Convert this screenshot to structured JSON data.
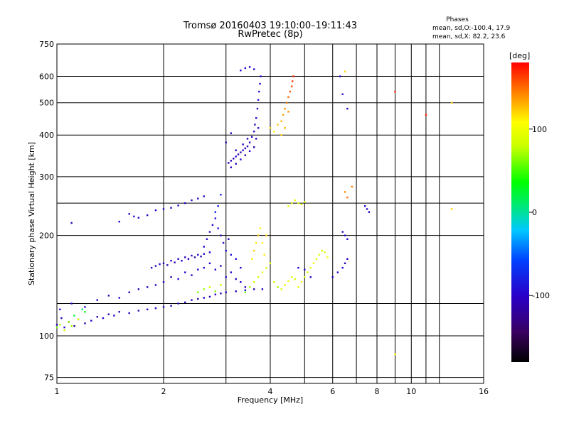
{
  "chart_data": {
    "type": "scatter",
    "title": "Tromsø 20160403 19:10:00–19:11:43",
    "subtitle": "RwPretec (8p)",
    "xlabel": "Frequency [MHz]",
    "ylabel": "Stationary phase Virtual Height [km]",
    "x_scale": "log",
    "y_scale": "log",
    "xlim": [
      1,
      16
    ],
    "ylim": [
      72,
      750
    ],
    "x_ticks": [
      1,
      2,
      4,
      6,
      8,
      10,
      16
    ],
    "x_tick_labels": [
      "1",
      "2",
      "4",
      "6",
      "8",
      "10",
      "16"
    ],
    "x_extra_gridlines": [
      3,
      5,
      7,
      9,
      11,
      12
    ],
    "y_ticks": [
      75,
      100,
      200,
      300,
      400,
      500,
      600,
      750
    ],
    "y_tick_labels": [
      "75",
      "100",
      "200",
      "300",
      "400",
      "500",
      "600",
      "750"
    ],
    "y_extra_gridlines": [
      125,
      250
    ],
    "grid": true,
    "stats": {
      "heading": "Phases",
      "line_o": "mean, sd,O:-100.4, 17.9",
      "line_x": "mean, sd,X:  82.2, 23.6"
    },
    "colorbar": {
      "label": "[deg]",
      "range": [
        -180,
        180
      ],
      "ticks": [
        100,
        0,
        -100
      ],
      "tick_labels": [
        "100",
        "0",
        "-100"
      ]
    },
    "series": [
      {
        "points": [
          [
            1.0,
            108,
            -100
          ],
          [
            1.03,
            113,
            -110
          ],
          [
            1.05,
            106,
            -95
          ],
          [
            1.08,
            110,
            -105
          ],
          [
            1.12,
            107,
            -120
          ],
          [
            1.15,
            112,
            -100
          ],
          [
            1.2,
            109,
            -110
          ],
          [
            1.25,
            111,
            -100
          ],
          [
            1.3,
            114,
            -115
          ],
          [
            1.35,
            113,
            -100
          ],
          [
            1.4,
            116,
            -110
          ],
          [
            1.45,
            115,
            -100
          ],
          [
            1.5,
            118,
            -110
          ],
          [
            1.6,
            117,
            -100
          ],
          [
            1.7,
            119,
            -110
          ],
          [
            1.8,
            120,
            -100
          ],
          [
            1.9,
            121,
            -110
          ],
          [
            2.0,
            122,
            -100
          ],
          [
            2.1,
            123,
            -110
          ],
          [
            2.2,
            125,
            -100
          ],
          [
            2.3,
            126,
            -110
          ],
          [
            2.4,
            128,
            -100
          ],
          [
            2.5,
            129,
            -110
          ],
          [
            2.6,
            130,
            -100
          ],
          [
            2.7,
            131,
            -110
          ],
          [
            2.8,
            133,
            -100
          ],
          [
            2.9,
            134,
            -110
          ],
          [
            3.0,
            135,
            -100
          ],
          [
            3.2,
            136,
            -110
          ],
          [
            3.4,
            137,
            -100
          ],
          [
            3.6,
            138,
            -110
          ],
          [
            3.8,
            138,
            -100
          ],
          [
            1.02,
            120,
            -90
          ],
          [
            1.1,
            125,
            -100
          ],
          [
            1.2,
            122,
            -95
          ],
          [
            1.3,
            128,
            -100
          ],
          [
            1.4,
            132,
            -110
          ],
          [
            1.5,
            130,
            -95
          ],
          [
            1.6,
            135,
            -100
          ],
          [
            1.7,
            138,
            -110
          ],
          [
            1.8,
            140,
            -100
          ],
          [
            1.9,
            142,
            -105
          ],
          [
            2.0,
            145,
            -100
          ],
          [
            2.1,
            150,
            -110
          ],
          [
            2.2,
            148,
            -95
          ],
          [
            2.3,
            155,
            -100
          ],
          [
            2.4,
            152,
            -110
          ],
          [
            2.5,
            158,
            -100
          ],
          [
            2.6,
            160,
            -95
          ],
          [
            2.7,
            165,
            -105
          ],
          [
            2.8,
            158,
            -100
          ],
          [
            2.9,
            162,
            -110
          ],
          [
            3.0,
            150,
            -95
          ],
          [
            3.1,
            155,
            -100
          ],
          [
            3.2,
            148,
            -105
          ],
          [
            3.3,
            145,
            -100
          ],
          [
            3.4,
            140,
            -110
          ],
          [
            1.85,
            160,
            -105
          ],
          [
            1.9,
            162,
            -110
          ],
          [
            1.95,
            164,
            -100
          ],
          [
            2.0,
            165,
            -110
          ],
          [
            2.05,
            163,
            -105
          ],
          [
            2.1,
            168,
            -100
          ],
          [
            2.15,
            166,
            -110
          ],
          [
            2.2,
            170,
            -100
          ],
          [
            2.25,
            168,
            -105
          ],
          [
            2.3,
            172,
            -110
          ],
          [
            2.35,
            170,
            -100
          ],
          [
            2.4,
            174,
            -105
          ],
          [
            2.45,
            172,
            -110
          ],
          [
            2.5,
            175,
            -100
          ],
          [
            2.55,
            173,
            -105
          ],
          [
            2.6,
            176,
            -110
          ],
          [
            2.7,
            178,
            -100
          ],
          [
            2.6,
            185,
            -100
          ],
          [
            2.65,
            195,
            -90
          ],
          [
            2.7,
            205,
            -95
          ],
          [
            2.75,
            215,
            -100
          ],
          [
            2.8,
            225,
            -90
          ],
          [
            2.85,
            210,
            -95
          ],
          [
            2.9,
            200,
            -100
          ],
          [
            2.95,
            190,
            -90
          ],
          [
            3.0,
            180,
            -95
          ],
          [
            3.05,
            195,
            -100
          ],
          [
            3.1,
            175,
            -90
          ],
          [
            3.2,
            170,
            -95
          ],
          [
            3.3,
            160,
            -100
          ],
          [
            2.8,
            235,
            -80
          ],
          [
            2.85,
            245,
            -85
          ],
          [
            2.9,
            265,
            -80
          ],
          [
            1.6,
            232,
            -100
          ],
          [
            1.65,
            228,
            -95
          ],
          [
            1.7,
            226,
            -100
          ],
          [
            1.8,
            230,
            -105
          ],
          [
            1.9,
            238,
            -100
          ],
          [
            2.0,
            240,
            -95
          ],
          [
            2.1,
            242,
            -100
          ],
          [
            2.2,
            246,
            -105
          ],
          [
            2.3,
            250,
            -100
          ],
          [
            2.4,
            255,
            -95
          ],
          [
            2.5,
            258,
            -100
          ],
          [
            2.6,
            262,
            -105
          ],
          [
            1.5,
            220,
            -100
          ],
          [
            1.1,
            218,
            -110
          ],
          [
            3.05,
            330,
            -110
          ],
          [
            3.1,
            335,
            -105
          ],
          [
            3.15,
            340,
            -110
          ],
          [
            3.2,
            345,
            -100
          ],
          [
            3.25,
            350,
            -105
          ],
          [
            3.3,
            355,
            -110
          ],
          [
            3.35,
            360,
            -100
          ],
          [
            3.4,
            365,
            -105
          ],
          [
            3.45,
            370,
            -110
          ],
          [
            3.5,
            380,
            -100
          ],
          [
            3.55,
            395,
            -105
          ],
          [
            3.6,
            410,
            -95
          ],
          [
            3.62,
            430,
            -100
          ],
          [
            3.65,
            450,
            -90
          ],
          [
            3.68,
            480,
            -95
          ],
          [
            3.7,
            510,
            -90
          ],
          [
            3.72,
            540,
            -95
          ],
          [
            3.74,
            570,
            -90
          ],
          [
            3.76,
            600,
            -95
          ],
          [
            3.5,
            640,
            -100
          ],
          [
            3.4,
            635,
            -95
          ],
          [
            3.6,
            630,
            -100
          ],
          [
            3.3,
            625,
            -100
          ],
          [
            3.1,
            320,
            -100
          ],
          [
            3.2,
            328,
            -110
          ],
          [
            3.3,
            338,
            -100
          ],
          [
            3.4,
            348,
            -110
          ],
          [
            3.5,
            358,
            -100
          ],
          [
            3.6,
            368,
            -110
          ],
          [
            3.65,
            390,
            -100
          ],
          [
            3.7,
            420,
            -95
          ],
          [
            3.2,
            360,
            -110
          ],
          [
            3.35,
            375,
            -100
          ],
          [
            3.45,
            390,
            -105
          ],
          [
            4.8,
            160,
            -100
          ],
          [
            5.0,
            158,
            -95
          ],
          [
            5.2,
            150,
            -100
          ],
          [
            6.0,
            150,
            -100
          ],
          [
            6.2,
            155,
            -95
          ],
          [
            6.4,
            160,
            -100
          ],
          [
            6.5,
            165,
            -110
          ],
          [
            6.6,
            170,
            -100
          ],
          [
            6.4,
            205,
            -100
          ],
          [
            6.5,
            200,
            -95
          ],
          [
            6.6,
            195,
            -100
          ],
          [
            7.4,
            245,
            -100
          ],
          [
            7.5,
            240,
            -95
          ],
          [
            7.6,
            235,
            -100
          ],
          [
            6.3,
            600,
            -100
          ],
          [
            6.4,
            530,
            -95
          ],
          [
            6.6,
            480,
            -100
          ],
          [
            3.0,
            380,
            -110
          ],
          [
            3.1,
            405,
            -105
          ]
        ]
      },
      {
        "points": [
          [
            1.0,
            106,
            60
          ],
          [
            1.02,
            108,
            70
          ],
          [
            1.05,
            104,
            80
          ],
          [
            1.08,
            110,
            65
          ],
          [
            1.1,
            107,
            70
          ],
          [
            1.15,
            112,
            90
          ],
          [
            1.12,
            115,
            20
          ],
          [
            1.2,
            118,
            30
          ],
          [
            1.18,
            120,
            10
          ],
          [
            3.4,
            135,
            60
          ],
          [
            3.5,
            140,
            70
          ],
          [
            3.6,
            145,
            80
          ],
          [
            3.7,
            150,
            90
          ],
          [
            3.8,
            155,
            95
          ],
          [
            3.9,
            160,
            85
          ],
          [
            4.0,
            165,
            90
          ],
          [
            4.1,
            145,
            80
          ],
          [
            4.2,
            140,
            70
          ],
          [
            4.3,
            138,
            90
          ],
          [
            4.4,
            142,
            95
          ],
          [
            4.5,
            146,
            100
          ],
          [
            4.6,
            150,
            90
          ],
          [
            4.7,
            148,
            85
          ],
          [
            4.8,
            140,
            95
          ],
          [
            4.9,
            145,
            100
          ],
          [
            5.0,
            150,
            90
          ],
          [
            5.1,
            155,
            85
          ],
          [
            5.2,
            160,
            95
          ],
          [
            5.3,
            165,
            100
          ],
          [
            5.4,
            170,
            90
          ],
          [
            5.5,
            175,
            95
          ],
          [
            5.6,
            180,
            85
          ],
          [
            5.7,
            178,
            90
          ],
          [
            5.8,
            172,
            100
          ],
          [
            3.55,
            170,
            110
          ],
          [
            3.6,
            180,
            120
          ],
          [
            3.65,
            190,
            115
          ],
          [
            3.7,
            200,
            125
          ],
          [
            3.75,
            210,
            110
          ],
          [
            3.8,
            190,
            105
          ],
          [
            3.85,
            175,
            115
          ],
          [
            3.9,
            200,
            120
          ],
          [
            4.0,
            420,
            120
          ],
          [
            4.1,
            410,
            110
          ],
          [
            4.2,
            430,
            125
          ],
          [
            4.3,
            440,
            130
          ],
          [
            4.35,
            460,
            135
          ],
          [
            4.4,
            480,
            140
          ],
          [
            4.45,
            500,
            145
          ],
          [
            4.5,
            520,
            150
          ],
          [
            4.55,
            540,
            155
          ],
          [
            4.6,
            560,
            160
          ],
          [
            4.62,
            580,
            165
          ],
          [
            4.65,
            600,
            170
          ],
          [
            4.4,
            420,
            130
          ],
          [
            4.3,
            400,
            120
          ],
          [
            4.5,
            470,
            140
          ],
          [
            4.5,
            245,
            90
          ],
          [
            4.6,
            250,
            95
          ],
          [
            4.7,
            255,
            100
          ],
          [
            4.8,
            250,
            90
          ],
          [
            4.9,
            248,
            95
          ],
          [
            5.0,
            252,
            100
          ],
          [
            2.5,
            135,
            60
          ],
          [
            2.6,
            138,
            70
          ],
          [
            2.7,
            140,
            80
          ],
          [
            2.8,
            136,
            65
          ],
          [
            2.9,
            142,
            75
          ],
          [
            6.5,
            270,
            140
          ],
          [
            6.6,
            260,
            150
          ],
          [
            6.8,
            280,
            145
          ],
          [
            9.0,
            540,
            170
          ],
          [
            11.0,
            460,
            170
          ],
          [
            13.0,
            500,
            120
          ],
          [
            9.0,
            88,
            110
          ],
          [
            13.0,
            240,
            120
          ],
          [
            6.5,
            620,
            120
          ]
        ]
      }
    ]
  }
}
